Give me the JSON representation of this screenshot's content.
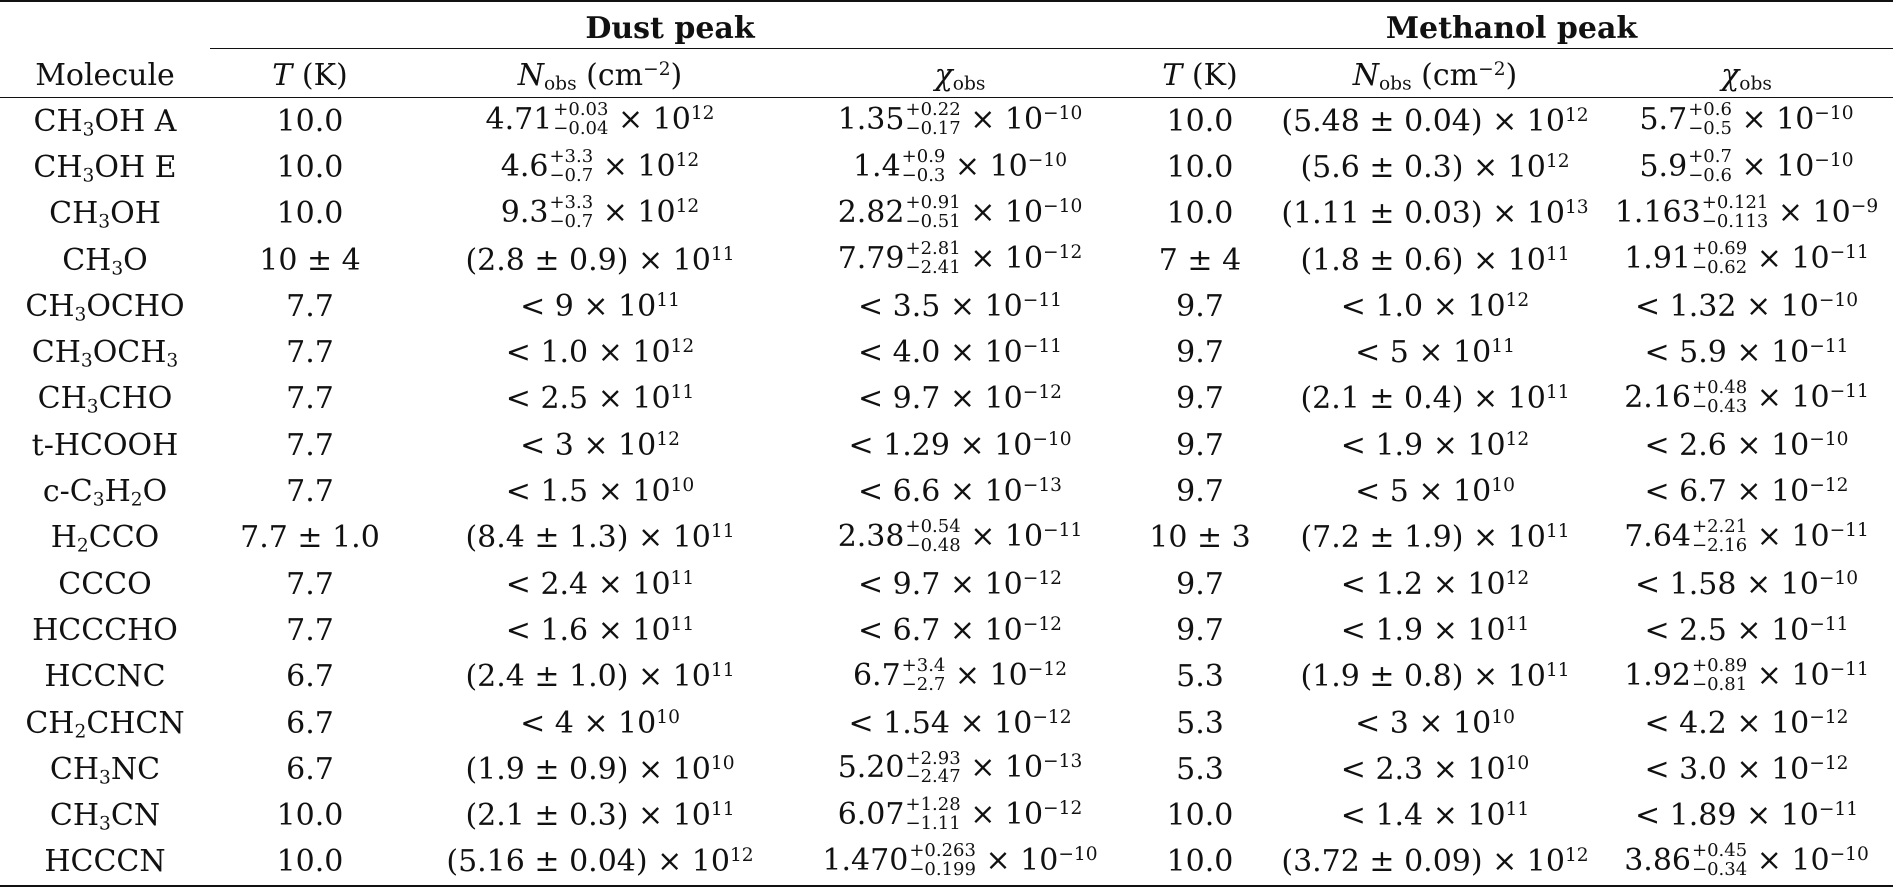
{
  "groups": {
    "dust": "Dust peak",
    "methanol": "Methanol peak"
  },
  "headers": {
    "molecule": "Molecule",
    "t_sym": "T",
    "t_unit": "(K)",
    "n_sym": "N",
    "n_sub": "obs",
    "n_unit": "(cm",
    "n_exp": "−2",
    "n_close": ")",
    "chi_sym": "χ",
    "chi_sub": "obs"
  },
  "rows": [
    {
      "mol": [
        [
          "CH",
          ""
        ],
        [
          "3",
          "sub"
        ],
        [
          "OH A",
          ""
        ]
      ],
      "dust": {
        "t": "10.0",
        "n": {
          "m": "4.71",
          "p": "+0.03",
          "q": "−0.04",
          "e": "12"
        },
        "x": {
          "m": "1.35",
          "p": "+0.22",
          "q": "−0.17",
          "e": "−10"
        }
      },
      "meth": {
        "t": "10.0",
        "n": {
          "txt": "(5.48 ± 0.04)",
          "e": "12"
        },
        "x": {
          "m": "5.7",
          "p": "+0.6",
          "q": "−0.5",
          "e": "−10"
        }
      }
    },
    {
      "mol": [
        [
          "CH",
          ""
        ],
        [
          "3",
          "sub"
        ],
        [
          "OH E",
          ""
        ]
      ],
      "dust": {
        "t": "10.0",
        "n": {
          "m": "4.6",
          "p": "+3.3",
          "q": "−0.7",
          "e": "12"
        },
        "x": {
          "m": "1.4",
          "p": "+0.9",
          "q": "−0.3",
          "e": "−10"
        }
      },
      "meth": {
        "t": "10.0",
        "n": {
          "txt": "(5.6 ± 0.3)",
          "e": "12"
        },
        "x": {
          "m": "5.9",
          "p": "+0.7",
          "q": "−0.6",
          "e": "−10"
        }
      }
    },
    {
      "mol": [
        [
          "CH",
          ""
        ],
        [
          "3",
          "sub"
        ],
        [
          "OH",
          ""
        ]
      ],
      "dust": {
        "t": "10.0",
        "n": {
          "m": "9.3",
          "p": "+3.3",
          "q": "−0.7",
          "e": "12"
        },
        "x": {
          "m": "2.82",
          "p": "+0.91",
          "q": "−0.51",
          "e": "−10"
        }
      },
      "meth": {
        "t": "10.0",
        "n": {
          "txt": "(1.11 ± 0.03)",
          "e": "13"
        },
        "x": {
          "m": "1.163",
          "p": "+0.121",
          "q": "−0.113",
          "e": "−9"
        }
      }
    },
    {
      "mol": [
        [
          "CH",
          ""
        ],
        [
          "3",
          "sub"
        ],
        [
          "O",
          ""
        ]
      ],
      "dust": {
        "t": "10 ± 4",
        "n": {
          "txt": "(2.8 ± 0.9)",
          "e": "11"
        },
        "x": {
          "m": "7.79",
          "p": "+2.81",
          "q": "−2.41",
          "e": "−12"
        }
      },
      "meth": {
        "t": "7 ± 4",
        "n": {
          "txt": "(1.8 ± 0.6)",
          "e": "11"
        },
        "x": {
          "m": "1.91",
          "p": "+0.69",
          "q": "−0.62",
          "e": "−11"
        }
      }
    },
    {
      "mol": [
        [
          "CH",
          ""
        ],
        [
          "3",
          "sub"
        ],
        [
          "OCHO",
          ""
        ]
      ],
      "dust": {
        "t": "7.7",
        "n": {
          "txt": "< 9",
          "e": "11"
        },
        "x": {
          "txt": "< 3.5",
          "e": "−11"
        }
      },
      "meth": {
        "t": "9.7",
        "n": {
          "txt": "< 1.0",
          "e": "12"
        },
        "x": {
          "txt": "< 1.32",
          "e": "−10"
        }
      }
    },
    {
      "mol": [
        [
          "CH",
          ""
        ],
        [
          "3",
          "sub"
        ],
        [
          "OCH",
          ""
        ],
        [
          "3",
          "sub"
        ]
      ],
      "dust": {
        "t": "7.7",
        "n": {
          "txt": "< 1.0",
          "e": "12"
        },
        "x": {
          "txt": "< 4.0",
          "e": "−11"
        }
      },
      "meth": {
        "t": "9.7",
        "n": {
          "txt": "< 5",
          "e": "11"
        },
        "x": {
          "txt": "< 5.9",
          "e": "−11"
        }
      }
    },
    {
      "mol": [
        [
          "CH",
          ""
        ],
        [
          "3",
          "sub"
        ],
        [
          "CHO",
          ""
        ]
      ],
      "dust": {
        "t": "7.7",
        "n": {
          "txt": "< 2.5",
          "e": "11"
        },
        "x": {
          "txt": "< 9.7",
          "e": "−12"
        }
      },
      "meth": {
        "t": "9.7",
        "n": {
          "txt": "(2.1 ± 0.4)",
          "e": "11"
        },
        "x": {
          "m": "2.16",
          "p": "+0.48",
          "q": "−0.43",
          "e": "−11"
        }
      }
    },
    {
      "mol": [
        [
          "t-HCOOH",
          ""
        ]
      ],
      "dust": {
        "t": "7.7",
        "n": {
          "txt": "< 3",
          "e": "12"
        },
        "x": {
          "txt": "< 1.29",
          "e": "−10"
        }
      },
      "meth": {
        "t": "9.7",
        "n": {
          "txt": "< 1.9",
          "e": "12"
        },
        "x": {
          "txt": "< 2.6",
          "e": "−10"
        }
      }
    },
    {
      "mol": [
        [
          "c-C",
          ""
        ],
        [
          "3",
          "sub"
        ],
        [
          "H",
          ""
        ],
        [
          "2",
          "sub"
        ],
        [
          "O",
          ""
        ]
      ],
      "dust": {
        "t": "7.7",
        "n": {
          "txt": "< 1.5",
          "e": "10"
        },
        "x": {
          "txt": "< 6.6",
          "e": "−13"
        }
      },
      "meth": {
        "t": "9.7",
        "n": {
          "txt": "< 5",
          "e": "10"
        },
        "x": {
          "txt": "< 6.7",
          "e": "−12"
        }
      }
    },
    {
      "mol": [
        [
          "H",
          ""
        ],
        [
          "2",
          "sub"
        ],
        [
          "CCO",
          ""
        ]
      ],
      "dust": {
        "t": "7.7 ± 1.0",
        "n": {
          "txt": "(8.4 ± 1.3)",
          "e": "11"
        },
        "x": {
          "m": "2.38",
          "p": "+0.54",
          "q": "−0.48",
          "e": "−11"
        }
      },
      "meth": {
        "t": "10 ± 3",
        "n": {
          "txt": "(7.2 ± 1.9)",
          "e": "11"
        },
        "x": {
          "m": "7.64",
          "p": "+2.21",
          "q": "−2.16",
          "e": "−11"
        }
      }
    },
    {
      "mol": [
        [
          "CCCO",
          ""
        ]
      ],
      "dust": {
        "t": "7.7",
        "n": {
          "txt": "< 2.4",
          "e": "11"
        },
        "x": {
          "txt": "< 9.7",
          "e": "−12"
        }
      },
      "meth": {
        "t": "9.7",
        "n": {
          "txt": "< 1.2",
          "e": "12"
        },
        "x": {
          "txt": "< 1.58",
          "e": "−10"
        }
      }
    },
    {
      "mol": [
        [
          "HCCCHO",
          ""
        ]
      ],
      "dust": {
        "t": "7.7",
        "n": {
          "txt": "< 1.6",
          "e": "11"
        },
        "x": {
          "txt": "< 6.7",
          "e": "−12"
        }
      },
      "meth": {
        "t": "9.7",
        "n": {
          "txt": "< 1.9",
          "e": "11"
        },
        "x": {
          "txt": "< 2.5",
          "e": "−11"
        }
      }
    },
    {
      "mol": [
        [
          "HCCNC",
          ""
        ]
      ],
      "dust": {
        "t": "6.7",
        "n": {
          "txt": "(2.4 ± 1.0)",
          "e": "11"
        },
        "x": {
          "m": "6.7",
          "p": "+3.4",
          "q": "−2.7",
          "e": "−12"
        }
      },
      "meth": {
        "t": "5.3",
        "n": {
          "txt": "(1.9 ± 0.8)",
          "e": "11"
        },
        "x": {
          "m": "1.92",
          "p": "+0.89",
          "q": "−0.81",
          "e": "−11"
        }
      }
    },
    {
      "mol": [
        [
          "CH",
          ""
        ],
        [
          "2",
          "sub"
        ],
        [
          "CHCN",
          ""
        ]
      ],
      "dust": {
        "t": "6.7",
        "n": {
          "txt": "< 4",
          "e": "10"
        },
        "x": {
          "txt": "< 1.54",
          "e": "−12"
        }
      },
      "meth": {
        "t": "5.3",
        "n": {
          "txt": "< 3",
          "e": "10"
        },
        "x": {
          "txt": "< 4.2",
          "e": "−12"
        }
      }
    },
    {
      "mol": [
        [
          "CH",
          ""
        ],
        [
          "3",
          "sub"
        ],
        [
          "NC",
          ""
        ]
      ],
      "dust": {
        "t": "6.7",
        "n": {
          "txt": "(1.9 ± 0.9)",
          "e": "10"
        },
        "x": {
          "m": "5.20",
          "p": "+2.93",
          "q": "−2.47",
          "e": "−13"
        }
      },
      "meth": {
        "t": "5.3",
        "n": {
          "txt": "< 2.3",
          "e": "10"
        },
        "x": {
          "txt": "< 3.0",
          "e": "−12"
        }
      }
    },
    {
      "mol": [
        [
          "CH",
          ""
        ],
        [
          "3",
          "sub"
        ],
        [
          "CN",
          ""
        ]
      ],
      "dust": {
        "t": "10.0",
        "n": {
          "txt": "(2.1 ± 0.3)",
          "e": "11"
        },
        "x": {
          "m": "6.07",
          "p": "+1.28",
          "q": "−1.11",
          "e": "−12"
        }
      },
      "meth": {
        "t": "10.0",
        "n": {
          "txt": "< 1.4",
          "e": "11"
        },
        "x": {
          "txt": "< 1.89",
          "e": "−11"
        }
      }
    },
    {
      "mol": [
        [
          "HCCCN",
          ""
        ]
      ],
      "dust": {
        "t": "10.0",
        "n": {
          "txt": "(5.16 ± 0.04)",
          "e": "12"
        },
        "x": {
          "m": "1.470",
          "p": "+0.263",
          "q": "−0.199",
          "e": "−10"
        }
      },
      "meth": {
        "t": "10.0",
        "n": {
          "txt": "(3.72 ± 0.09)",
          "e": "12"
        },
        "x": {
          "m": "3.86",
          "p": "+0.45",
          "q": "−0.34",
          "e": "−10"
        }
      }
    }
  ]
}
